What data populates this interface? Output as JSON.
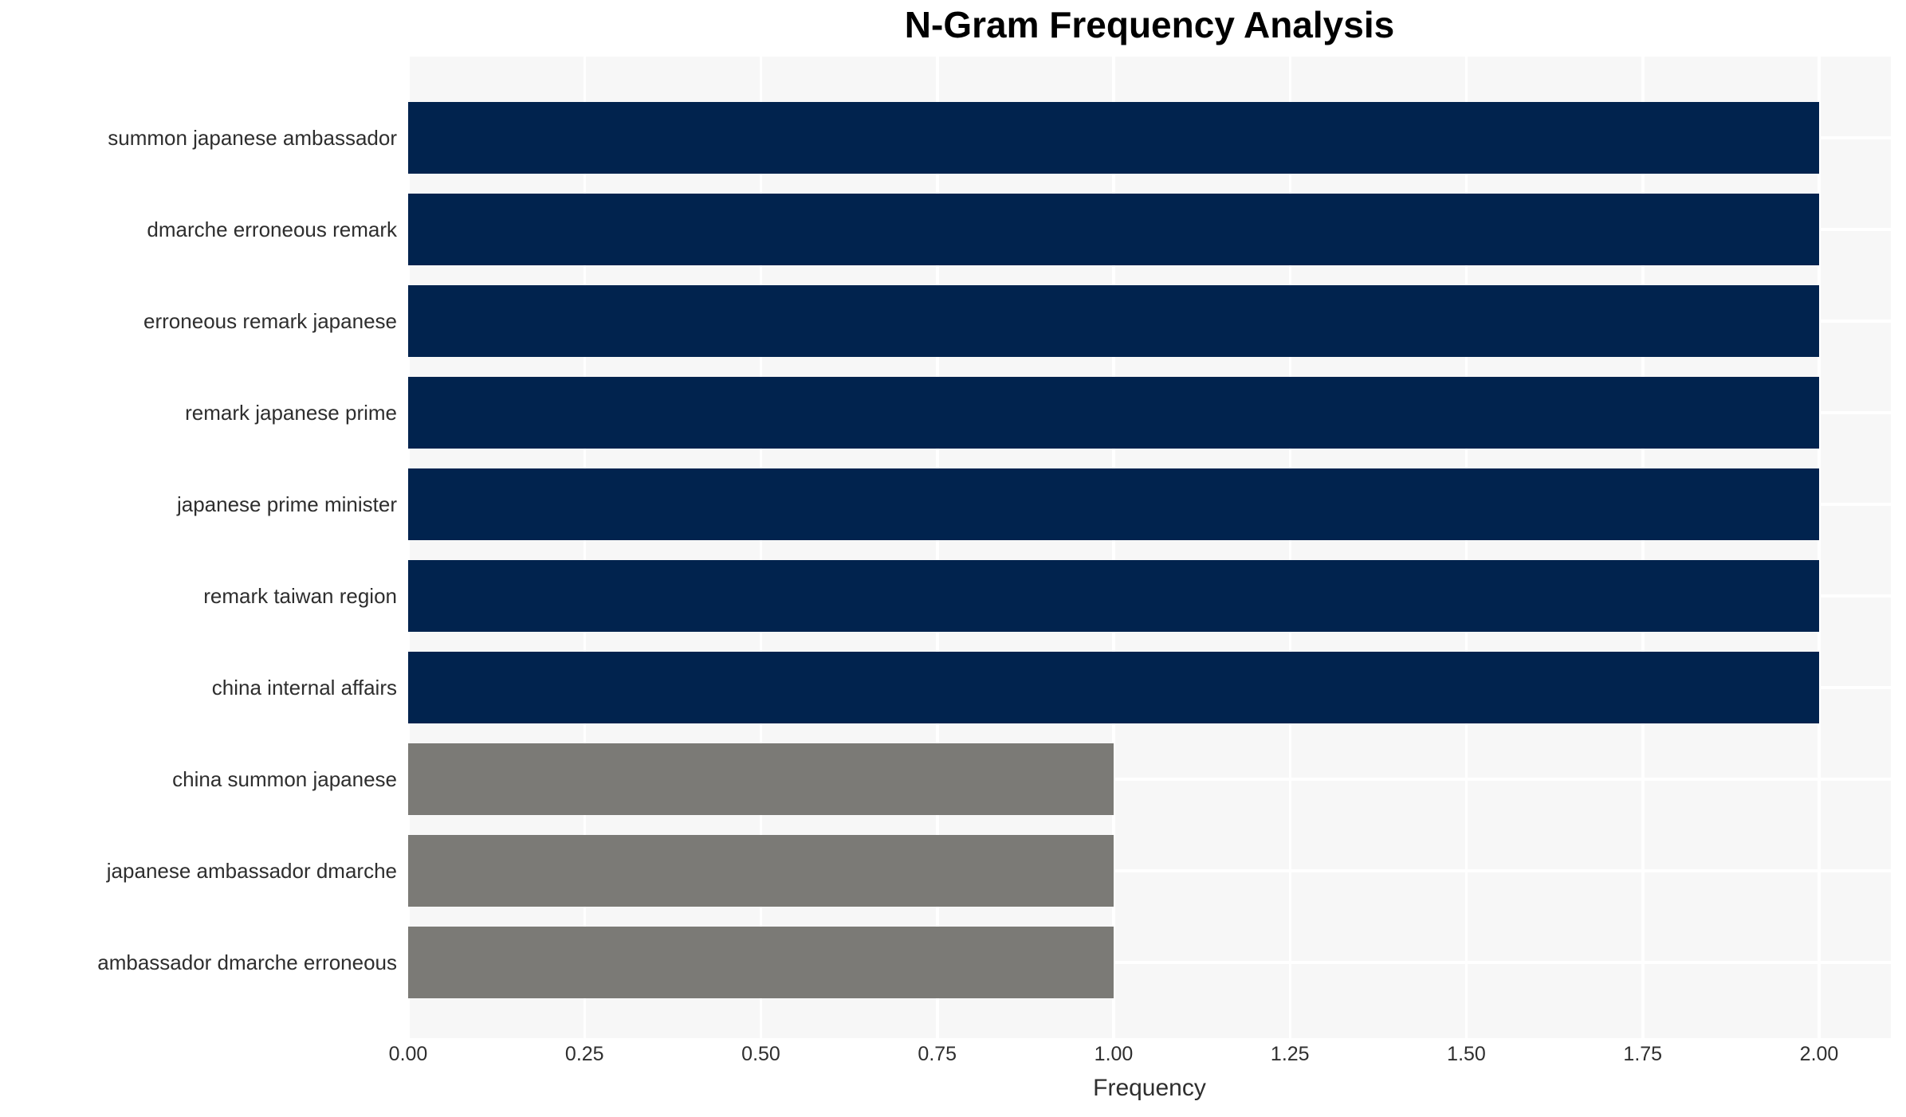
{
  "chart_data": {
    "type": "bar",
    "orientation": "horizontal",
    "title": "N-Gram Frequency Analysis",
    "xlabel": "Frequency",
    "ylabel": "",
    "categories": [
      "summon japanese ambassador",
      "dmarche erroneous remark",
      "erroneous remark japanese",
      "remark japanese prime",
      "japanese prime minister",
      "remark taiwan region",
      "china internal affairs",
      "china summon japanese",
      "japanese ambassador dmarche",
      "ambassador dmarche erroneous"
    ],
    "values": [
      2.0,
      2.0,
      2.0,
      2.0,
      2.0,
      2.0,
      2.0,
      1.0,
      1.0,
      1.0
    ],
    "bar_colors": [
      "#01234E",
      "#01234E",
      "#01234E",
      "#01234E",
      "#01234E",
      "#01234E",
      "#01234E",
      "#7B7A76",
      "#7B7A76",
      "#7B7A76"
    ],
    "colors": {
      "high_frequency_bar": "#01234E",
      "low_frequency_bar": "#7B7A76",
      "panel_background": "#F7F7F7",
      "grid_line": "#FFFFFF",
      "title_text": "#000000",
      "label_text": "#2E2E2E"
    },
    "xticks": [
      0.0,
      0.25,
      0.5,
      0.75,
      1.0,
      1.25,
      1.5,
      1.75,
      2.0
    ],
    "xtick_labels": [
      "0.00",
      "0.25",
      "0.50",
      "0.75",
      "1.00",
      "1.25",
      "1.50",
      "1.75",
      "2.00"
    ],
    "xlim": [
      0,
      2.102
    ],
    "grid": true,
    "legend": false
  }
}
